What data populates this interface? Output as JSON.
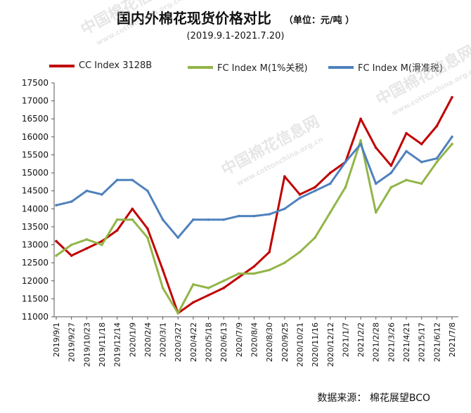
{
  "header": {
    "title": "国内外棉花现货价格对比",
    "unit": "（单位：元/吨 ）",
    "subtitle": "(2019.9.1-2021.7.20)"
  },
  "source_text": "数据来源：  棉花展望BCO",
  "watermark": {
    "cn": "中国棉花信息网",
    "url": "www.cottonchina.org.cn"
  },
  "chart_data": {
    "type": "line",
    "x_categories": [
      "2019/9/1",
      "2019/9/27",
      "2019/10/23",
      "2019/11/18",
      "2019/12/14",
      "2020/1/9",
      "2020/2/4",
      "2020/3/1",
      "2020/3/27",
      "2020/4/22",
      "2020/5/18",
      "2020/6/13",
      "2020/7/9",
      "2020/8/4",
      "2020/8/30",
      "2020/9/25",
      "2020/10/21",
      "2020/11/16",
      "2020/12/12",
      "2021/1/7",
      "2021/2/2",
      "2021/2/28",
      "2021/3/26",
      "2021/4/21",
      "2021/5/17",
      "2021/6/12",
      "2021/7/8"
    ],
    "ylim": [
      11000,
      17500
    ],
    "yticks": [
      11000,
      11500,
      12000,
      12500,
      13000,
      13500,
      14000,
      14500,
      15000,
      15500,
      16000,
      16500,
      17000,
      17500
    ],
    "grid": false,
    "legend_position": "top",
    "series": [
      {
        "name": "CC Index 3128B",
        "color": "#c00000",
        "values": [
          13100,
          12700,
          12900,
          13100,
          13400,
          14000,
          13450,
          12300,
          11100,
          11400,
          11600,
          11800,
          12100,
          12400,
          12800,
          14900,
          14400,
          14600,
          15000,
          15300,
          16500,
          15700,
          15200,
          16100,
          15800,
          16300,
          17100
        ]
      },
      {
        "name": "FC Index M(1%关税)",
        "color": "#92b548",
        "values": [
          12700,
          13000,
          13150,
          13000,
          13700,
          13700,
          13200,
          11800,
          11100,
          11900,
          11800,
          12000,
          12200,
          12200,
          12300,
          12500,
          12800,
          13200,
          13900,
          14600,
          15900,
          13900,
          14600,
          14800,
          14700,
          15300,
          15800
        ]
      },
      {
        "name": "FC Index M(滑准税)",
        "color": "#4f81bd",
        "values": [
          14100,
          14200,
          14500,
          14400,
          14800,
          14800,
          14500,
          13700,
          13200,
          13700,
          13700,
          13700,
          13800,
          13800,
          13850,
          14000,
          14300,
          14500,
          14700,
          15300,
          15800,
          14700,
          15000,
          15600,
          15300,
          15400,
          16000
        ]
      }
    ]
  }
}
